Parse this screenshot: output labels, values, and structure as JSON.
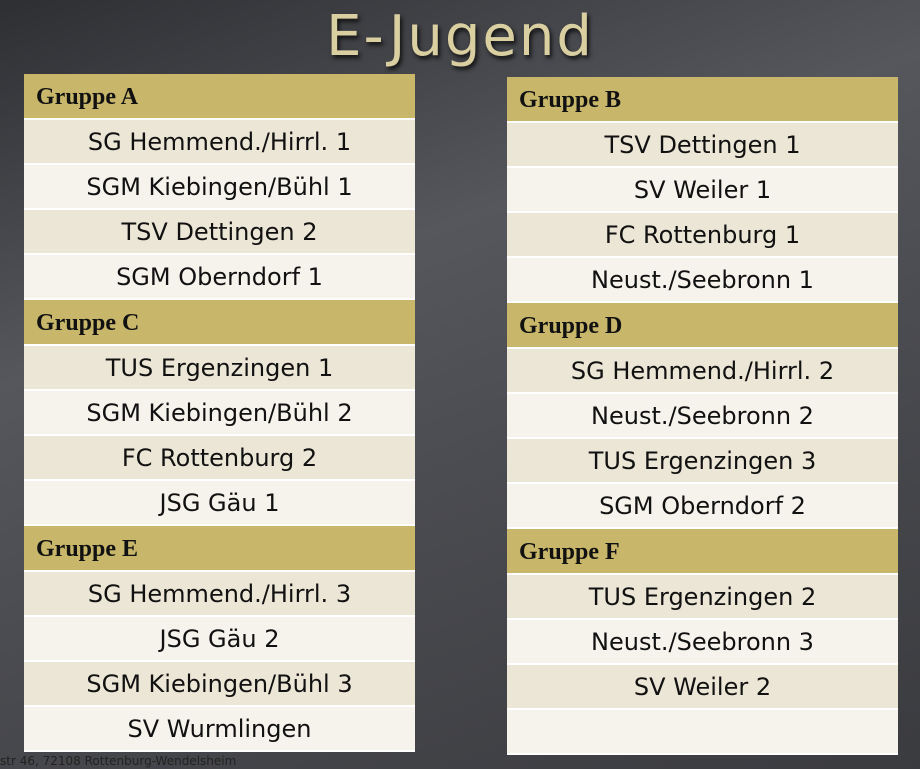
{
  "title": "E-Jugend",
  "groups": [
    {
      "name": "Gruppe A",
      "teams": [
        "SG Hemmend./Hirrl. 1",
        "SGM Kiebingen/Bühl 1",
        "TSV Dettingen 2",
        "SGM Oberndorf 1"
      ]
    },
    {
      "name": "Gruppe B",
      "teams": [
        "TSV Dettingen 1",
        "SV Weiler 1",
        "FC Rottenburg 1",
        "Neust./Seebronn 1"
      ]
    },
    {
      "name": "Gruppe C",
      "teams": [
        "TUS Ergenzingen 1",
        "SGM Kiebingen/Bühl 2",
        "FC Rottenburg 2",
        "JSG Gäu 1"
      ]
    },
    {
      "name": "Gruppe D",
      "teams": [
        "SG Hemmend./Hirrl. 2",
        "Neust./Seebronn 2",
        "TUS Ergenzingen 3",
        "SGM Oberndorf 2"
      ]
    },
    {
      "name": "Gruppe E",
      "teams": [
        "SG Hemmend./Hirrl. 3",
        "JSG Gäu 2",
        "SGM Kiebingen/Bühl 3",
        "SV Wurmlingen"
      ]
    },
    {
      "name": "Gruppe F",
      "teams": [
        "TUS Ergenzingen 2",
        "Neust./Seebronn 3",
        "SV Weiler 2"
      ]
    }
  ],
  "footer": "str 46, 72108 Rottenburg-Wendelsheim"
}
